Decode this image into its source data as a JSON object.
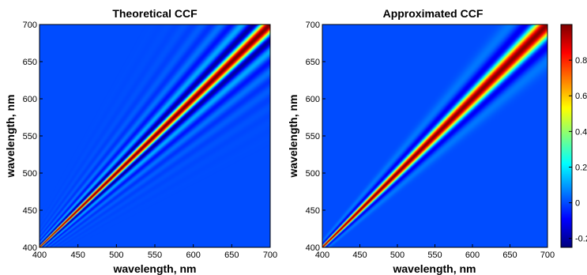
{
  "chart_data": [
    {
      "type": "heatmap",
      "title": "Theoretical  CCF",
      "xlabel": "wavelength, nm",
      "ylabel": "wavelength, nm",
      "xlim": [
        400,
        700
      ],
      "ylim": [
        400,
        700
      ],
      "xticks": [
        "400",
        "450",
        "500",
        "550",
        "600",
        "650",
        "700"
      ],
      "yticks": [
        "400",
        "450",
        "500",
        "550",
        "600",
        "650",
        "700"
      ]
    },
    {
      "type": "heatmap",
      "title": "Approximated CCF",
      "xlabel": "wavelength, nm",
      "ylabel": "wavelength, nm",
      "xlim": [
        400,
        700
      ],
      "ylim": [
        400,
        700
      ],
      "xticks": [
        "400",
        "450",
        "500",
        "550",
        "600",
        "650",
        "700"
      ],
      "yticks": [
        "400",
        "450",
        "500",
        "550",
        "600",
        "650",
        "700"
      ]
    }
  ],
  "colorbar": {
    "colormap": "jet",
    "range": [
      -0.25,
      1.0
    ],
    "ticks": [
      "0.8",
      "0.6",
      "0.4",
      "0.2",
      "0",
      "-0.2"
    ]
  }
}
